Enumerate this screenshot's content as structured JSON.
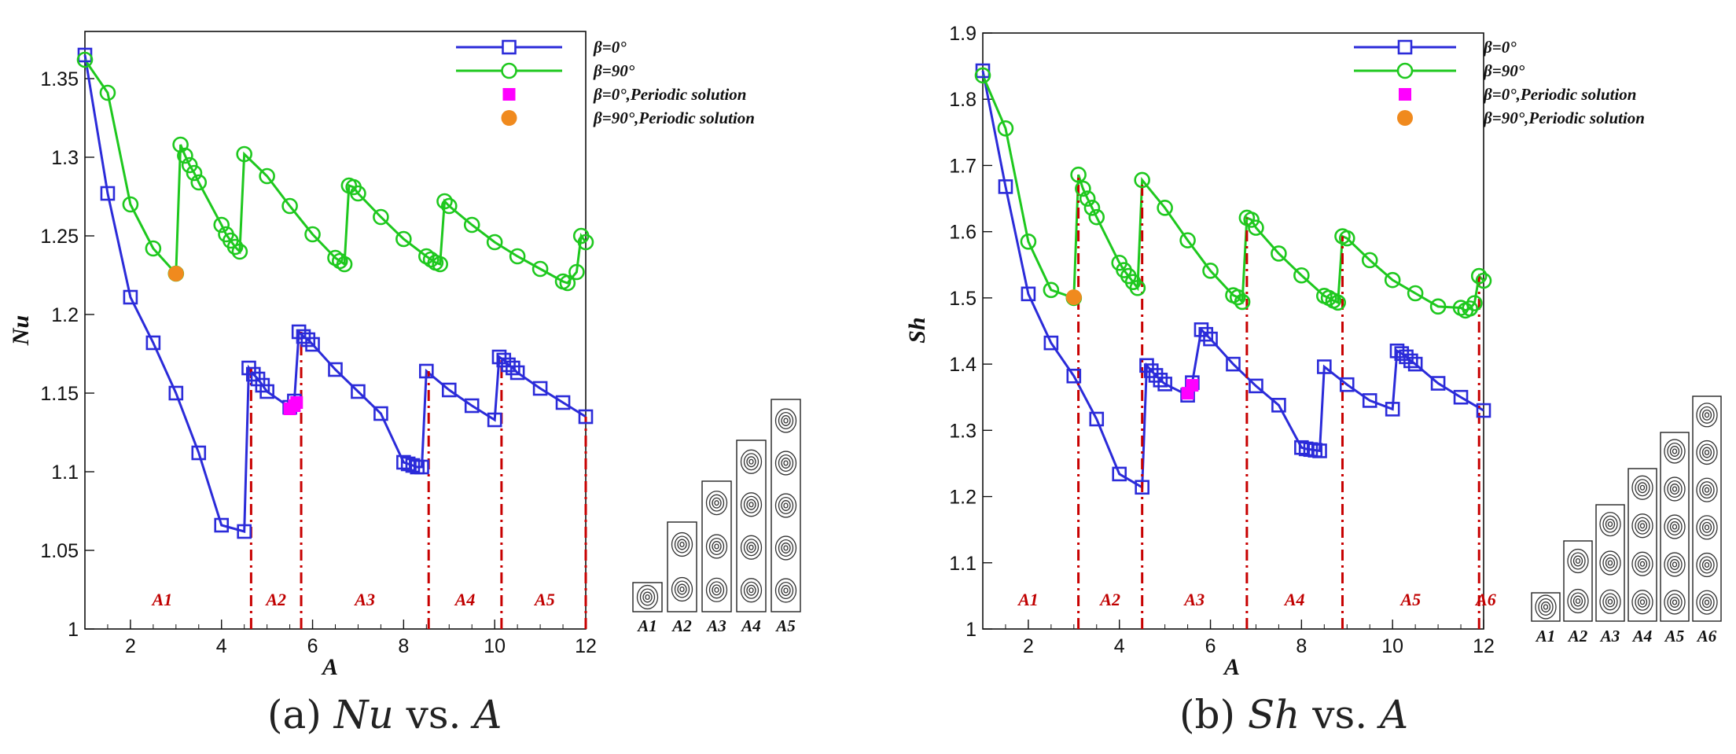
{
  "chart_data": [
    {
      "type": "line",
      "panel": "a",
      "caption": {
        "prefix": "(a) ",
        "var": "Nu",
        "mid": " vs. ",
        "var2": "A"
      },
      "xlabel": "A",
      "ylabel": "Nu",
      "xlim": [
        1,
        12
      ],
      "ylim": [
        1,
        1.38
      ],
      "xticks": [
        2,
        4,
        6,
        8,
        10,
        12
      ],
      "yticks": [
        1,
        1.05,
        1.1,
        1.15,
        1.2,
        1.25,
        1.3,
        1.35
      ],
      "ytick_labels": [
        "1",
        "1.05",
        "1.1",
        "1.15",
        "1.2",
        "1.25",
        "1.3",
        "1.35"
      ],
      "series": [
        {
          "name": "β=0°",
          "color": "#2b2bd9",
          "marker": "square",
          "x": [
            1.0,
            1.5,
            2.0,
            2.5,
            3.0,
            3.5,
            4.0,
            4.5,
            4.6,
            4.7,
            4.8,
            4.9,
            5.0,
            5.5,
            5.6,
            5.7,
            5.8,
            5.9,
            6.0,
            6.5,
            7.0,
            7.5,
            8.0,
            8.1,
            8.2,
            8.3,
            8.4,
            8.5,
            9.0,
            9.5,
            10.0,
            10.1,
            10.2,
            10.3,
            10.4,
            10.5,
            11.0,
            11.5,
            12.0
          ],
          "y": [
            1.365,
            1.277,
            1.211,
            1.182,
            1.15,
            1.112,
            1.066,
            1.062,
            1.166,
            1.162,
            1.159,
            1.155,
            1.151,
            1.141,
            1.145,
            1.189,
            1.186,
            1.184,
            1.181,
            1.165,
            1.151,
            1.137,
            1.106,
            1.105,
            1.104,
            1.103,
            1.103,
            1.164,
            1.152,
            1.142,
            1.133,
            1.173,
            1.171,
            1.168,
            1.166,
            1.163,
            1.153,
            1.144,
            1.135
          ]
        },
        {
          "name": "β=90°",
          "color": "#1ec81e",
          "marker": "circle",
          "x": [
            1.0,
            1.5,
            2.0,
            2.5,
            3.0,
            3.1,
            3.2,
            3.3,
            3.4,
            3.5,
            4.0,
            4.1,
            4.2,
            4.3,
            4.4,
            4.5,
            5.0,
            5.5,
            6.0,
            6.5,
            6.6,
            6.7,
            6.8,
            6.9,
            7.0,
            7.5,
            8.0,
            8.5,
            8.6,
            8.7,
            8.8,
            8.9,
            9.0,
            9.5,
            10.0,
            10.5,
            11.0,
            11.5,
            11.6,
            11.8,
            11.9,
            12.0
          ],
          "y": [
            1.362,
            1.341,
            1.27,
            1.242,
            1.226,
            1.308,
            1.301,
            1.295,
            1.29,
            1.284,
            1.257,
            1.251,
            1.247,
            1.243,
            1.24,
            1.302,
            1.288,
            1.269,
            1.251,
            1.236,
            1.234,
            1.232,
            1.282,
            1.281,
            1.277,
            1.262,
            1.248,
            1.237,
            1.235,
            1.233,
            1.232,
            1.272,
            1.269,
            1.257,
            1.246,
            1.237,
            1.229,
            1.221,
            1.22,
            1.227,
            1.25,
            1.246
          ]
        },
        {
          "name": "β=0°,Periodic solution",
          "color": "#ff00ff",
          "marker": "filled-square",
          "x": [
            5.5,
            5.6,
            5.65
          ],
          "y": [
            1.14,
            1.142,
            1.144
          ]
        },
        {
          "name": "β=90°,Periodic solution",
          "color": "#f08a1e",
          "marker": "filled-circle",
          "x": [
            3.0
          ],
          "y": [
            1.226
          ]
        }
      ],
      "transitions": [
        4.65,
        5.75,
        8.55,
        10.15,
        12.0
      ],
      "regions": [
        {
          "label": "A1",
          "x": 2.7
        },
        {
          "label": "A2",
          "x": 5.2
        },
        {
          "label": "A3",
          "x": 7.15
        },
        {
          "label": "A4",
          "x": 9.35
        },
        {
          "label": "A5",
          "x": 11.1
        }
      ],
      "cells": [
        {
          "label": "A1",
          "cells": 1
        },
        {
          "label": "A2",
          "cells": 2
        },
        {
          "label": "A3",
          "cells": 3
        },
        {
          "label": "A4",
          "cells": 4
        },
        {
          "label": "A5",
          "cells": 5
        }
      ]
    },
    {
      "type": "line",
      "panel": "b",
      "caption": {
        "prefix": "(b) ",
        "var": "Sh",
        "mid": " vs. ",
        "var2": "A"
      },
      "xlabel": "A",
      "ylabel": "Sh",
      "xlim": [
        1,
        12
      ],
      "ylim": [
        1,
        1.9
      ],
      "xticks": [
        2,
        4,
        6,
        8,
        10,
        12
      ],
      "yticks": [
        1,
        1.1,
        1.2,
        1.3,
        1.4,
        1.5,
        1.6,
        1.7,
        1.8,
        1.9
      ],
      "ytick_labels": [
        "1",
        "1.1",
        "1.2",
        "1.3",
        "1.4",
        "1.5",
        "1.6",
        "1.7",
        "1.8",
        "1.9"
      ],
      "series": [
        {
          "name": "β=0°",
          "color": "#2b2bd9",
          "marker": "square",
          "x": [
            1.0,
            1.5,
            2.0,
            2.5,
            3.0,
            3.5,
            4.0,
            4.5,
            4.6,
            4.7,
            4.8,
            4.9,
            5.0,
            5.5,
            5.6,
            5.8,
            5.9,
            6.0,
            6.5,
            7.0,
            7.5,
            8.0,
            8.1,
            8.2,
            8.3,
            8.4,
            8.5,
            9.0,
            9.5,
            10.0,
            10.1,
            10.2,
            10.3,
            10.4,
            10.5,
            11.0,
            11.5,
            12.0
          ],
          "y": [
            1.843,
            1.668,
            1.506,
            1.432,
            1.382,
            1.317,
            1.234,
            1.214,
            1.398,
            1.39,
            1.383,
            1.376,
            1.37,
            1.353,
            1.372,
            1.452,
            1.445,
            1.438,
            1.4,
            1.367,
            1.338,
            1.274,
            1.272,
            1.271,
            1.27,
            1.269,
            1.396,
            1.369,
            1.345,
            1.332,
            1.42,
            1.416,
            1.411,
            1.405,
            1.4,
            1.371,
            1.35,
            1.33
          ]
        },
        {
          "name": "β=90°",
          "color": "#1ec81e",
          "marker": "circle",
          "x": [
            1.0,
            1.5,
            2.0,
            2.5,
            3.0,
            3.1,
            3.2,
            3.3,
            3.4,
            3.5,
            4.0,
            4.1,
            4.2,
            4.3,
            4.4,
            4.5,
            5.0,
            5.5,
            6.0,
            6.5,
            6.6,
            6.7,
            6.8,
            6.9,
            7.0,
            7.5,
            8.0,
            8.5,
            8.6,
            8.7,
            8.8,
            8.9,
            9.0,
            9.5,
            10.0,
            10.5,
            11.0,
            11.5,
            11.6,
            11.7,
            11.8,
            11.9,
            12.0
          ],
          "y": [
            1.836,
            1.756,
            1.585,
            1.512,
            1.5,
            1.686,
            1.665,
            1.65,
            1.636,
            1.622,
            1.553,
            1.542,
            1.533,
            1.524,
            1.515,
            1.678,
            1.636,
            1.587,
            1.541,
            1.504,
            1.501,
            1.494,
            1.621,
            1.618,
            1.606,
            1.567,
            1.534,
            1.503,
            1.5,
            1.496,
            1.493,
            1.593,
            1.59,
            1.557,
            1.527,
            1.507,
            1.487,
            1.485,
            1.481,
            1.484,
            1.492,
            1.533,
            1.526
          ]
        },
        {
          "name": "β=0°,Periodic solution",
          "color": "#ff00ff",
          "marker": "filled-square",
          "x": [
            5.5,
            5.6
          ],
          "y": [
            1.356,
            1.368
          ]
        },
        {
          "name": "β=90°,Periodic solution",
          "color": "#f08a1e",
          "marker": "filled-circle",
          "x": [
            3.0
          ],
          "y": [
            1.501
          ]
        }
      ],
      "transitions": [
        3.1,
        4.5,
        6.8,
        8.9,
        11.9
      ],
      "regions": [
        {
          "label": "A1",
          "x": 2.0
        },
        {
          "label": "A2",
          "x": 3.8
        },
        {
          "label": "A3",
          "x": 5.65
        },
        {
          "label": "A4",
          "x": 7.85
        },
        {
          "label": "A5",
          "x": 10.4
        },
        {
          "label": "A6",
          "x": 12.05
        }
      ],
      "cells": [
        {
          "label": "A1",
          "cells": 1
        },
        {
          "label": "A2",
          "cells": 2
        },
        {
          "label": "A3",
          "cells": 3
        },
        {
          "label": "A4",
          "cells": 4
        },
        {
          "label": "A5",
          "cells": 5
        },
        {
          "label": "A6",
          "cells": 6
        }
      ]
    }
  ]
}
